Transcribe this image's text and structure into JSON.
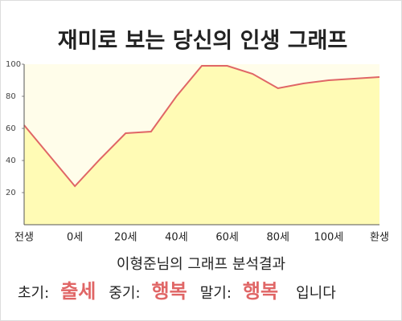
{
  "chart_data": {
    "type": "area",
    "title": "재미로 보는 당신의 인생 그래프",
    "categories": [
      "전생",
      null,
      "0세",
      null,
      "20세",
      null,
      "40세",
      null,
      "60세",
      null,
      "80세",
      null,
      "100세",
      null,
      "환생"
    ],
    "values": [
      62,
      43,
      24,
      41,
      57,
      58,
      80,
      99,
      99,
      94,
      85,
      88,
      90,
      91,
      92
    ],
    "line_color": "#e06666",
    "fill_color": "#fffbb5",
    "background": "#fffdea",
    "ylim": [
      0,
      100
    ],
    "yticks": [
      20,
      40,
      60,
      80,
      100
    ],
    "grid": false,
    "summary": {
      "heading": "이형준님의 그래프 분석결과",
      "items": [
        {
          "label": "초기:",
          "value": "출세"
        },
        {
          "label": "중기:",
          "value": "행복"
        },
        {
          "label": "말기:",
          "value": "행복"
        }
      ],
      "ending": "입니다"
    }
  }
}
